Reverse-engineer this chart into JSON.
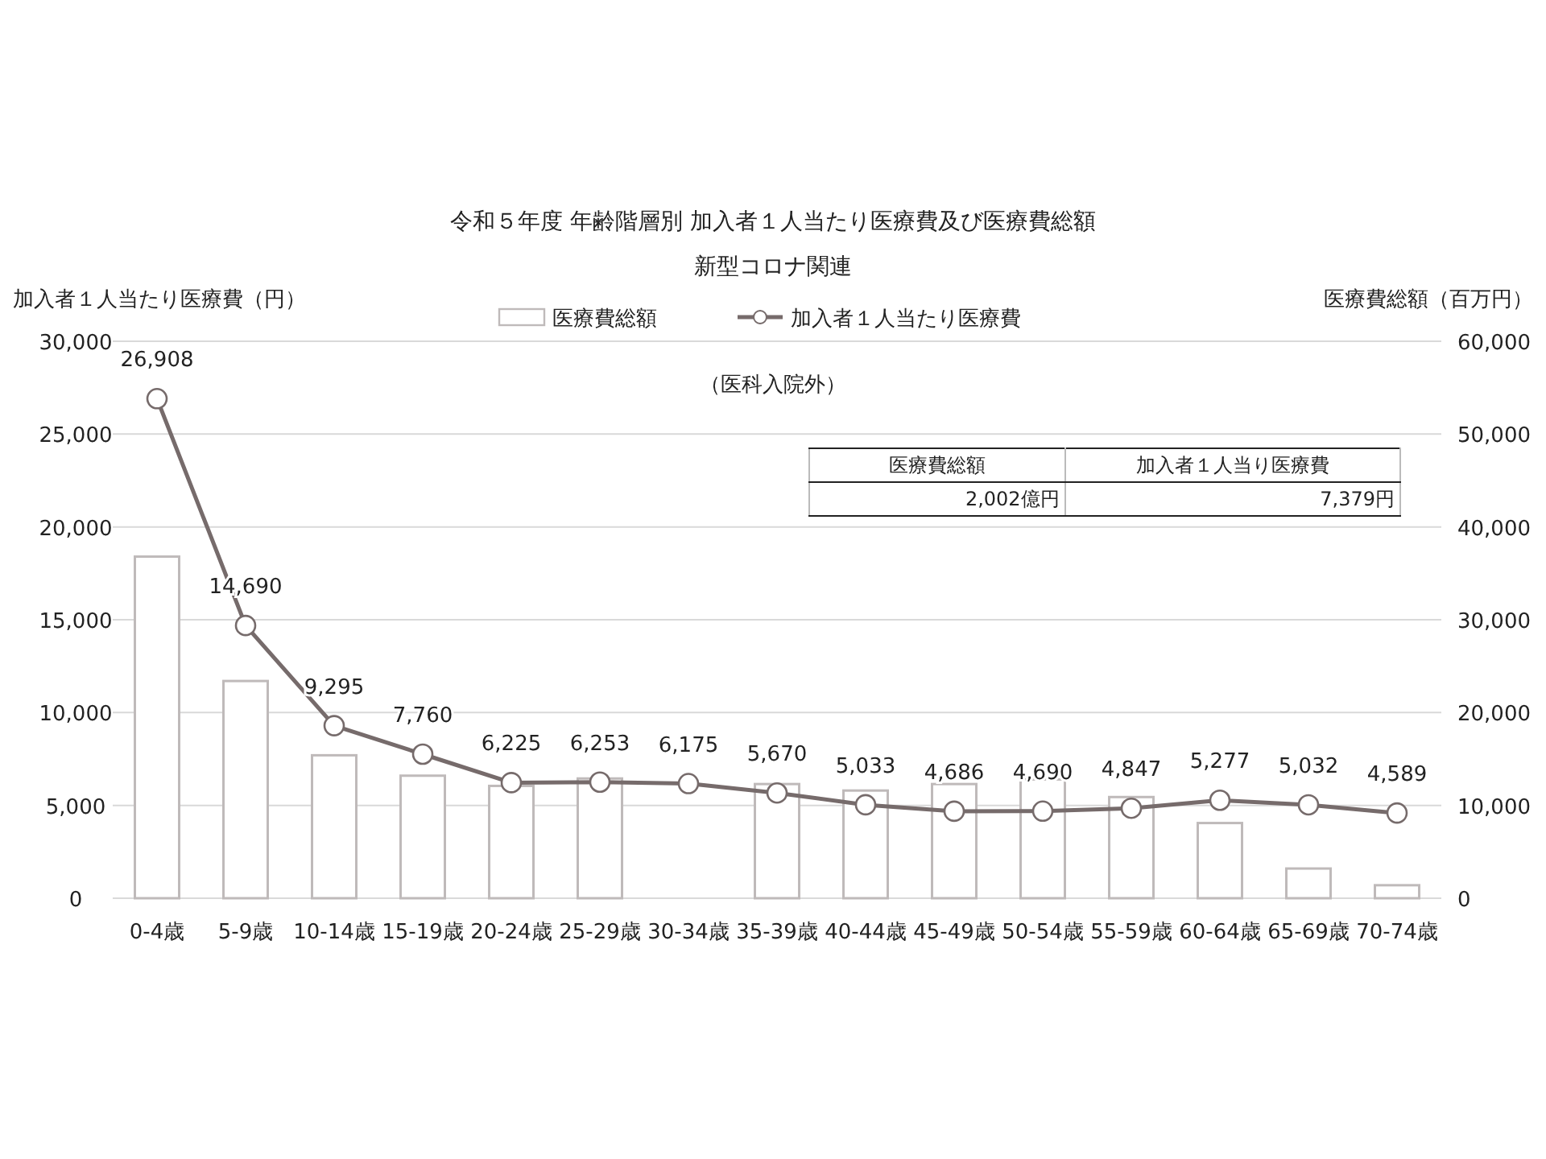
{
  "chart_data": {
    "type": "bar",
    "title": "令和５年度 年齢階層別 加入者１人当たり医療費及び医療費総額",
    "subtitle": "新型コロナ関連",
    "ylabel": "加入者１人当たり医療費（円）",
    "y2label": "医療費総額（百万円）",
    "annotations": [
      "（医科入院外）",
      "医療費総額",
      "加入者１人当り医療費",
      "2,002億円",
      "7,379円"
    ],
    "categories": [
      "0-4歳",
      "5-9歳",
      "10-14歳",
      "15-19歳",
      "20-24歳",
      "25-29歳",
      "30-34歳",
      "35-39歳",
      "40-44歳",
      "45-49歳",
      "50-54歳",
      "55-59歳",
      "60-64歳",
      "65-69歳",
      "70-74歳"
    ],
    "series": [
      {
        "name": "医療費総額",
        "axis": "y2",
        "color": "#bfbaba",
        "values": [
          36800,
          23400,
          15400,
          13200,
          12100,
          12900,
          null,
          12300,
          11600,
          12300,
          12800,
          10900,
          8100,
          3200,
          1400
        ]
      },
      {
        "name": "加入者１人当たり医療費",
        "type": "line",
        "color": "#766b6b",
        "marker": "circle",
        "values": [
          26908,
          14690,
          9295,
          7760,
          6225,
          6253,
          6175,
          5670,
          5033,
          4686,
          4690,
          4847,
          5277,
          5032,
          4589
        ],
        "value_labels": [
          "26,908",
          "14,690",
          "9,295",
          "7,760",
          "6,225",
          "6,253",
          "6,175",
          "5,670",
          "5,033",
          "4,686",
          "4,690",
          "4,847",
          "5,277",
          "5,032",
          "4,589"
        ]
      }
    ],
    "ylim": [
      0,
      30000
    ],
    "yticks": [
      {
        "value": 0,
        "label": "0"
      },
      {
        "value": 5000,
        "label": "5,000"
      },
      {
        "value": 10000,
        "label": "10,000"
      },
      {
        "value": 15000,
        "label": "15,000"
      },
      {
        "value": 20000,
        "label": "20,000"
      },
      {
        "value": 25000,
        "label": "25,000"
      },
      {
        "value": 30000,
        "label": "30,000"
      }
    ],
    "y2lim": [
      0,
      60000
    ],
    "y2ticks": [
      {
        "value": 0,
        "label": "0"
      },
      {
        "value": 10000,
        "label": "10,000"
      },
      {
        "value": 20000,
        "label": "20,000"
      },
      {
        "value": 30000,
        "label": "30,000"
      },
      {
        "value": 40000,
        "label": "40,000"
      },
      {
        "value": 50000,
        "label": "50,000"
      },
      {
        "value": 60000,
        "label": "60,000"
      }
    ],
    "grid": "y",
    "legend": "top"
  }
}
